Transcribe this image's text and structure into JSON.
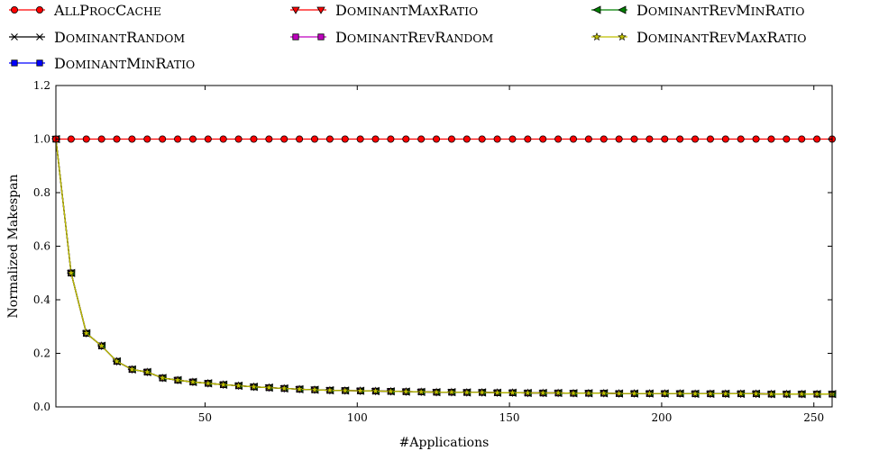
{
  "chart_data": {
    "type": "line",
    "title": "",
    "xlabel": "#Applications",
    "ylabel": "Normalized Makespan",
    "xlim": [
      1,
      256
    ],
    "ylim": [
      0.0,
      1.2
    ],
    "xticks": [
      50,
      100,
      150,
      200,
      250
    ],
    "yticks": [
      0.0,
      0.2,
      0.4,
      0.6,
      0.8,
      1.0,
      1.2
    ],
    "grid": false,
    "legend_placement": "top",
    "x_label_note": "x sampled every 5 applications from 1 to 256",
    "series": [
      {
        "name": "AllProcCache",
        "label_main": "A",
        "label_rest": "LL",
        "label_parts": [
          [
            "A",
            "LL"
          ],
          [
            "P",
            "ROC"
          ],
          [
            "C",
            "ACHE"
          ]
        ],
        "color": "#ff0000",
        "marker": "circle",
        "values_rule": "constant",
        "values": [
          1.0
        ]
      },
      {
        "name": "DominantRandom",
        "label_parts": [
          [
            "D",
            "OMINANT"
          ],
          [
            "R",
            "ANDOM"
          ]
        ],
        "color": "#000000",
        "marker": "x",
        "values_rule": "inverse",
        "values": [
          1.0,
          0.5,
          0.275,
          0.228,
          0.17,
          0.14,
          0.13,
          0.108,
          0.1,
          0.093,
          0.088,
          0.083,
          0.079,
          0.075,
          0.072,
          0.069,
          0.066,
          0.064,
          0.062,
          0.061,
          0.06,
          0.059,
          0.058,
          0.057,
          0.056,
          0.055,
          0.055,
          0.054,
          0.054,
          0.053,
          0.053,
          0.052,
          0.052,
          0.052,
          0.051,
          0.051,
          0.051,
          0.05,
          0.05,
          0.05,
          0.05,
          0.05,
          0.049,
          0.049,
          0.049,
          0.049,
          0.049,
          0.048,
          0.048,
          0.048,
          0.048,
          0.048
        ]
      },
      {
        "name": "DominantMinRatio",
        "label_parts": [
          [
            "D",
            "OMINANT"
          ],
          [
            "M",
            "IN"
          ],
          [
            "R",
            "ATIO"
          ]
        ],
        "color": "#0000ff",
        "marker": "square",
        "values_rule": "inverse"
      },
      {
        "name": "DominantMaxRatio",
        "label_parts": [
          [
            "D",
            "OMINANT"
          ],
          [
            "M",
            "AX"
          ],
          [
            "R",
            "ATIO"
          ]
        ],
        "color": "#ff0000",
        "marker": "triangle-down",
        "values_rule": "inverse"
      },
      {
        "name": "DominantRevRandom",
        "label_parts": [
          [
            "D",
            "OMINANT"
          ],
          [
            "R",
            "EV"
          ],
          [
            "R",
            "ANDOM"
          ]
        ],
        "color": "#bf00bf",
        "marker": "square",
        "values_rule": "inverse"
      },
      {
        "name": "DominantRevMinRatio",
        "label_parts": [
          [
            "D",
            "OMINANT"
          ],
          [
            "R",
            "EV"
          ],
          [
            "M",
            "IN"
          ],
          [
            "R",
            "ATIO"
          ]
        ],
        "color": "#008000",
        "marker": "triangle-left",
        "values_rule": "inverse"
      },
      {
        "name": "DominantRevMaxRatio",
        "label_parts": [
          [
            "D",
            "OMINANT"
          ],
          [
            "R",
            "EV"
          ],
          [
            "M",
            "AX"
          ],
          [
            "R",
            "ATIO"
          ]
        ],
        "color": "#bfbf00",
        "marker": "star",
        "values_rule": "inverse"
      }
    ]
  }
}
